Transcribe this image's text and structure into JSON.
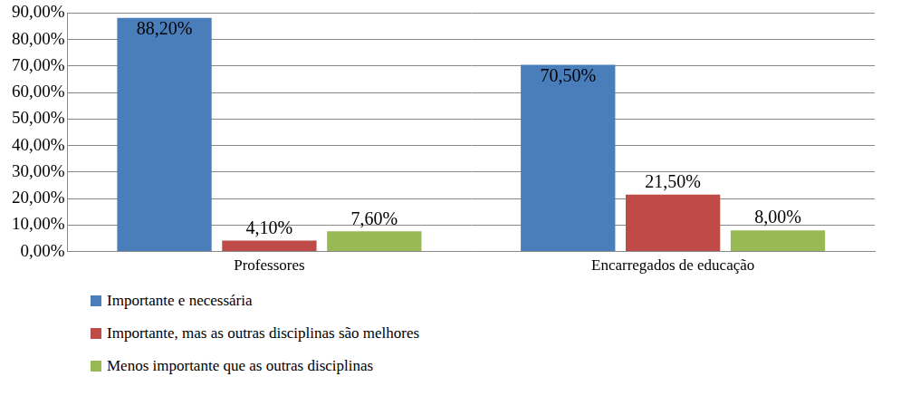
{
  "chart_data": {
    "type": "bar",
    "categories": [
      "Professores",
      "Encarregados de educação"
    ],
    "series": [
      {
        "name": "Importante e necessária",
        "color": "#4a7ebb",
        "values": [
          88.2,
          70.5
        ],
        "value_labels": [
          "88,20%",
          "70,50%"
        ]
      },
      {
        "name": "Importante, mas as outras disciplinas são melhores",
        "color": "#be4b48",
        "values": [
          4.1,
          21.5
        ],
        "value_labels": [
          "4,10%",
          "21,50%"
        ]
      },
      {
        "name": "Menos importante que as outras disciplinas",
        "color": "#98b954",
        "values": [
          7.6,
          8.0
        ],
        "value_labels": [
          "7,60%",
          "8,00%"
        ]
      }
    ],
    "ylim": [
      0,
      90
    ],
    "yticks": [
      {
        "value": 0,
        "label": "0,00%"
      },
      {
        "value": 10,
        "label": "10,00%"
      },
      {
        "value": 20,
        "label": "20,00%"
      },
      {
        "value": 30,
        "label": "30,00%"
      },
      {
        "value": 40,
        "label": "40,00%"
      },
      {
        "value": 50,
        "label": "50,00%"
      },
      {
        "value": 60,
        "label": "60,00%"
      },
      {
        "value": 70,
        "label": "70,00%"
      },
      {
        "value": 80,
        "label": "80,00%"
      },
      {
        "value": 90,
        "label": "90,00%"
      }
    ],
    "grid": true,
    "legend": "bottom",
    "data_labels": true
  }
}
